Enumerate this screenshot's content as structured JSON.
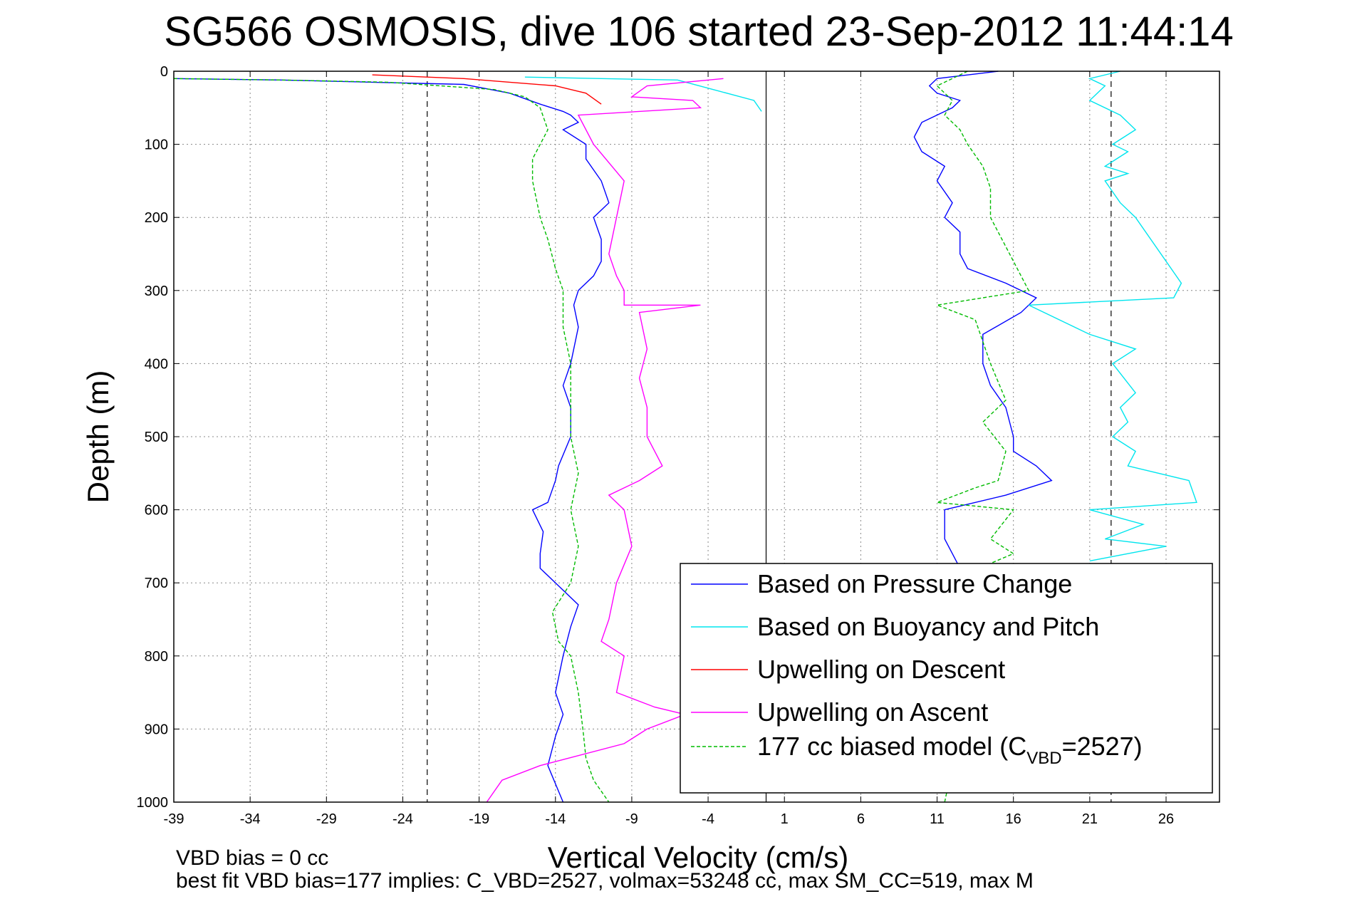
{
  "chart_data": {
    "type": "line",
    "title": "SG566 OSMOSIS, dive 106 started 23-Sep-2012 11:44:14",
    "xlabel": "Vertical Velocity (cm/s)",
    "ylabel": "Depth (m)",
    "xlim": [
      -39,
      29.5
    ],
    "ylim": [
      0,
      1000
    ],
    "y_reversed": true,
    "grid": true,
    "legend_position": "lower-right",
    "xticks": [
      -39,
      -34,
      -29,
      -24,
      -19,
      -14,
      -9,
      -4,
      1,
      6,
      11,
      16,
      21,
      26
    ],
    "yticks": [
      0,
      100,
      200,
      300,
      400,
      500,
      600,
      700,
      800,
      900,
      1000
    ],
    "reference_lines": {
      "solid_x": -0.2,
      "dashed_x": [
        -22.4,
        22.4
      ]
    },
    "series": [
      {
        "name": "Based on Pressure Change",
        "color": "#0000ff",
        "style": "solid",
        "points": [
          {
            "group": "descent",
            "x": [
              -39,
              -32,
              -26,
              -20,
              -17,
              -15,
              -13.5,
              -13,
              -12.5,
              -13.5,
              -12,
              -12,
              -11,
              -10.5,
              -11.5,
              -11,
              -11,
              -11.5,
              -12.5,
              -12.8,
              -12.5,
              -13,
              -13.5,
              -13,
              -13,
              -13.8,
              -14,
              -14.5,
              -15.5,
              -14.8,
              -15,
              -15,
              -14,
              -12.5,
              -13,
              -13.5,
              -14,
              -13.5,
              -14,
              -14.5,
              -13.5
            ],
            "y": [
              10,
              12,
              15,
              18,
              30,
              45,
              55,
              60,
              70,
              80,
              100,
              120,
              150,
              180,
              200,
              230,
              260,
              280,
              300,
              320,
              350,
              400,
              430,
              460,
              500,
              540,
              560,
              590,
              600,
              630,
              660,
              680,
              700,
              730,
              760,
              800,
              850,
              880,
              910,
              950,
              1000
            ]
          },
          {
            "group": "ascent",
            "x": [
              15,
              11,
              10.5,
              11,
              12.5,
              12,
              10,
              9.5,
              10,
              11.5,
              11,
              12,
              11.5,
              12.5,
              12.5,
              13,
              15.5,
              17.5,
              16.5,
              14,
              14,
              14.5,
              15.5,
              16,
              16,
              17.5,
              18.5,
              15.5,
              11.5,
              11.5,
              12,
              13,
              14
            ],
            "y": [
              0,
              10,
              20,
              30,
              40,
              50,
              70,
              90,
              110,
              130,
              150,
              180,
              200,
              220,
              250,
              270,
              290,
              310,
              330,
              360,
              400,
              430,
              460,
              500,
              520,
              540,
              560,
              580,
              600,
              640,
              660,
              700,
              720
            ]
          }
        ]
      },
      {
        "name": "Based on Buoyancy and Pitch",
        "color": "#00e5ee",
        "style": "solid",
        "points": [
          {
            "group": "descent",
            "x": [
              -16,
              -11,
              -6,
              -1,
              -0.5
            ],
            "y": [
              8,
              10,
              12,
              40,
              55
            ]
          },
          {
            "group": "ascent",
            "x": [
              23,
              21,
              22,
              21,
              23,
              24,
              22.5,
              23.5,
              22,
              23.5,
              22,
              23,
              24,
              27,
              26.5,
              17,
              20,
              21,
              24,
              22.5,
              24,
              23,
              23.5,
              22.5,
              24,
              23.5,
              27.5,
              28,
              21,
              24.5,
              22,
              26,
              21
            ],
            "y": [
              0,
              10,
              20,
              40,
              60,
              80,
              100,
              110,
              130,
              140,
              150,
              180,
              200,
              290,
              310,
              320,
              350,
              360,
              380,
              400,
              440,
              460,
              480,
              500,
              520,
              540,
              560,
              590,
              600,
              620,
              640,
              650,
              670
            ]
          }
        ]
      },
      {
        "name": "Upwelling on Descent",
        "color": "#ff0000",
        "style": "solid",
        "points": [
          {
            "group": "descent",
            "x": [
              -26,
              -20,
              -17,
              -14,
              -12,
              -11
            ],
            "y": [
              5,
              10,
              15,
              20,
              30,
              45
            ]
          }
        ]
      },
      {
        "name": "Upwelling on Ascent",
        "color": "#ff00ff",
        "style": "solid",
        "points": [
          {
            "group": "ascent",
            "x": [
              -3,
              -8,
              -9,
              -5,
              -4.5,
              -12.5,
              -11.5,
              -9.5,
              -10,
              -10.5,
              -10,
              -9.5,
              -9.5,
              -4.5,
              -8.5,
              -8,
              -8.5,
              -8,
              -8,
              -7,
              -8.5,
              -10.5,
              -9.5,
              -9,
              -10,
              -10.5,
              -11,
              -9.5,
              -10,
              -7.5,
              -5.5,
              -8,
              -9.5,
              -15,
              -17.5,
              -18.5
            ],
            "y": [
              10,
              20,
              35,
              40,
              50,
              60,
              100,
              150,
              200,
              250,
              280,
              300,
              320,
              320,
              330,
              380,
              420,
              460,
              500,
              540,
              560,
              580,
              600,
              650,
              700,
              750,
              780,
              800,
              850,
              870,
              880,
              900,
              920,
              950,
              970,
              1000
            ]
          }
        ]
      },
      {
        "name": "177 cc biased model (C_VBD=2527)",
        "color": "#00bb00",
        "style": "dashed",
        "points": [
          {
            "group": "descent",
            "x": [
              -39,
              -32,
              -25,
              -18,
              -16,
              -15,
              -14.5,
              -15.5,
              -15.5,
              -15,
              -14.5,
              -14,
              -13.5,
              -13.5,
              -13,
              -13,
              -13,
              -12.5,
              -13,
              -12.5,
              -13,
              -14.2,
              -13.8,
              -13,
              -12.5,
              -12.2,
              -12,
              -11.5,
              -10.5
            ],
            "y": [
              10,
              12,
              15,
              25,
              35,
              50,
              80,
              120,
              150,
              200,
              230,
              270,
              300,
              350,
              400,
              450,
              500,
              550,
              600,
              650,
              700,
              740,
              780,
              800,
              850,
              900,
              940,
              970,
              1000
            ]
          },
          {
            "group": "ascent",
            "x": [
              13,
              11,
              12,
              11.5,
              12.5,
              13,
              14,
              14.5,
              14.5,
              15.5,
              17,
              11,
              13.5,
              14.5,
              15.5,
              14,
              15.5,
              15,
              13.5,
              11,
              16,
              14.5,
              16,
              11.5,
              12,
              12.5,
              11.5
            ],
            "y": [
              0,
              20,
              40,
              60,
              80,
              100,
              130,
              160,
              200,
              240,
              300,
              320,
              340,
              400,
              450,
              480,
              520,
              560,
              570,
              590,
              600,
              640,
              660,
              700,
              800,
              900,
              1000
            ]
          }
        ]
      }
    ]
  },
  "notes": {
    "line1": "VBD bias = 0 cc",
    "line2": "best fit VBD bias=177 implies: C_VBD=2527, volmax=53248 cc, max SM_CC=519, max M"
  },
  "legend": {
    "entries": [
      {
        "label": "Based on Pressure Change",
        "color": "#0000ff",
        "style": "solid"
      },
      {
        "label": "Based on Buoyancy and Pitch",
        "color": "#00e5ee",
        "style": "solid"
      },
      {
        "label": "Upwelling on Descent",
        "color": "#ff0000",
        "style": "solid"
      },
      {
        "label": "Upwelling on Ascent",
        "color": "#ff00ff",
        "style": "solid"
      },
      {
        "label_main": "177 cc biased model (C",
        "label_sub": "VBD",
        "label_tail": "=2527)",
        "color": "#00bb00",
        "style": "dashed"
      }
    ]
  }
}
